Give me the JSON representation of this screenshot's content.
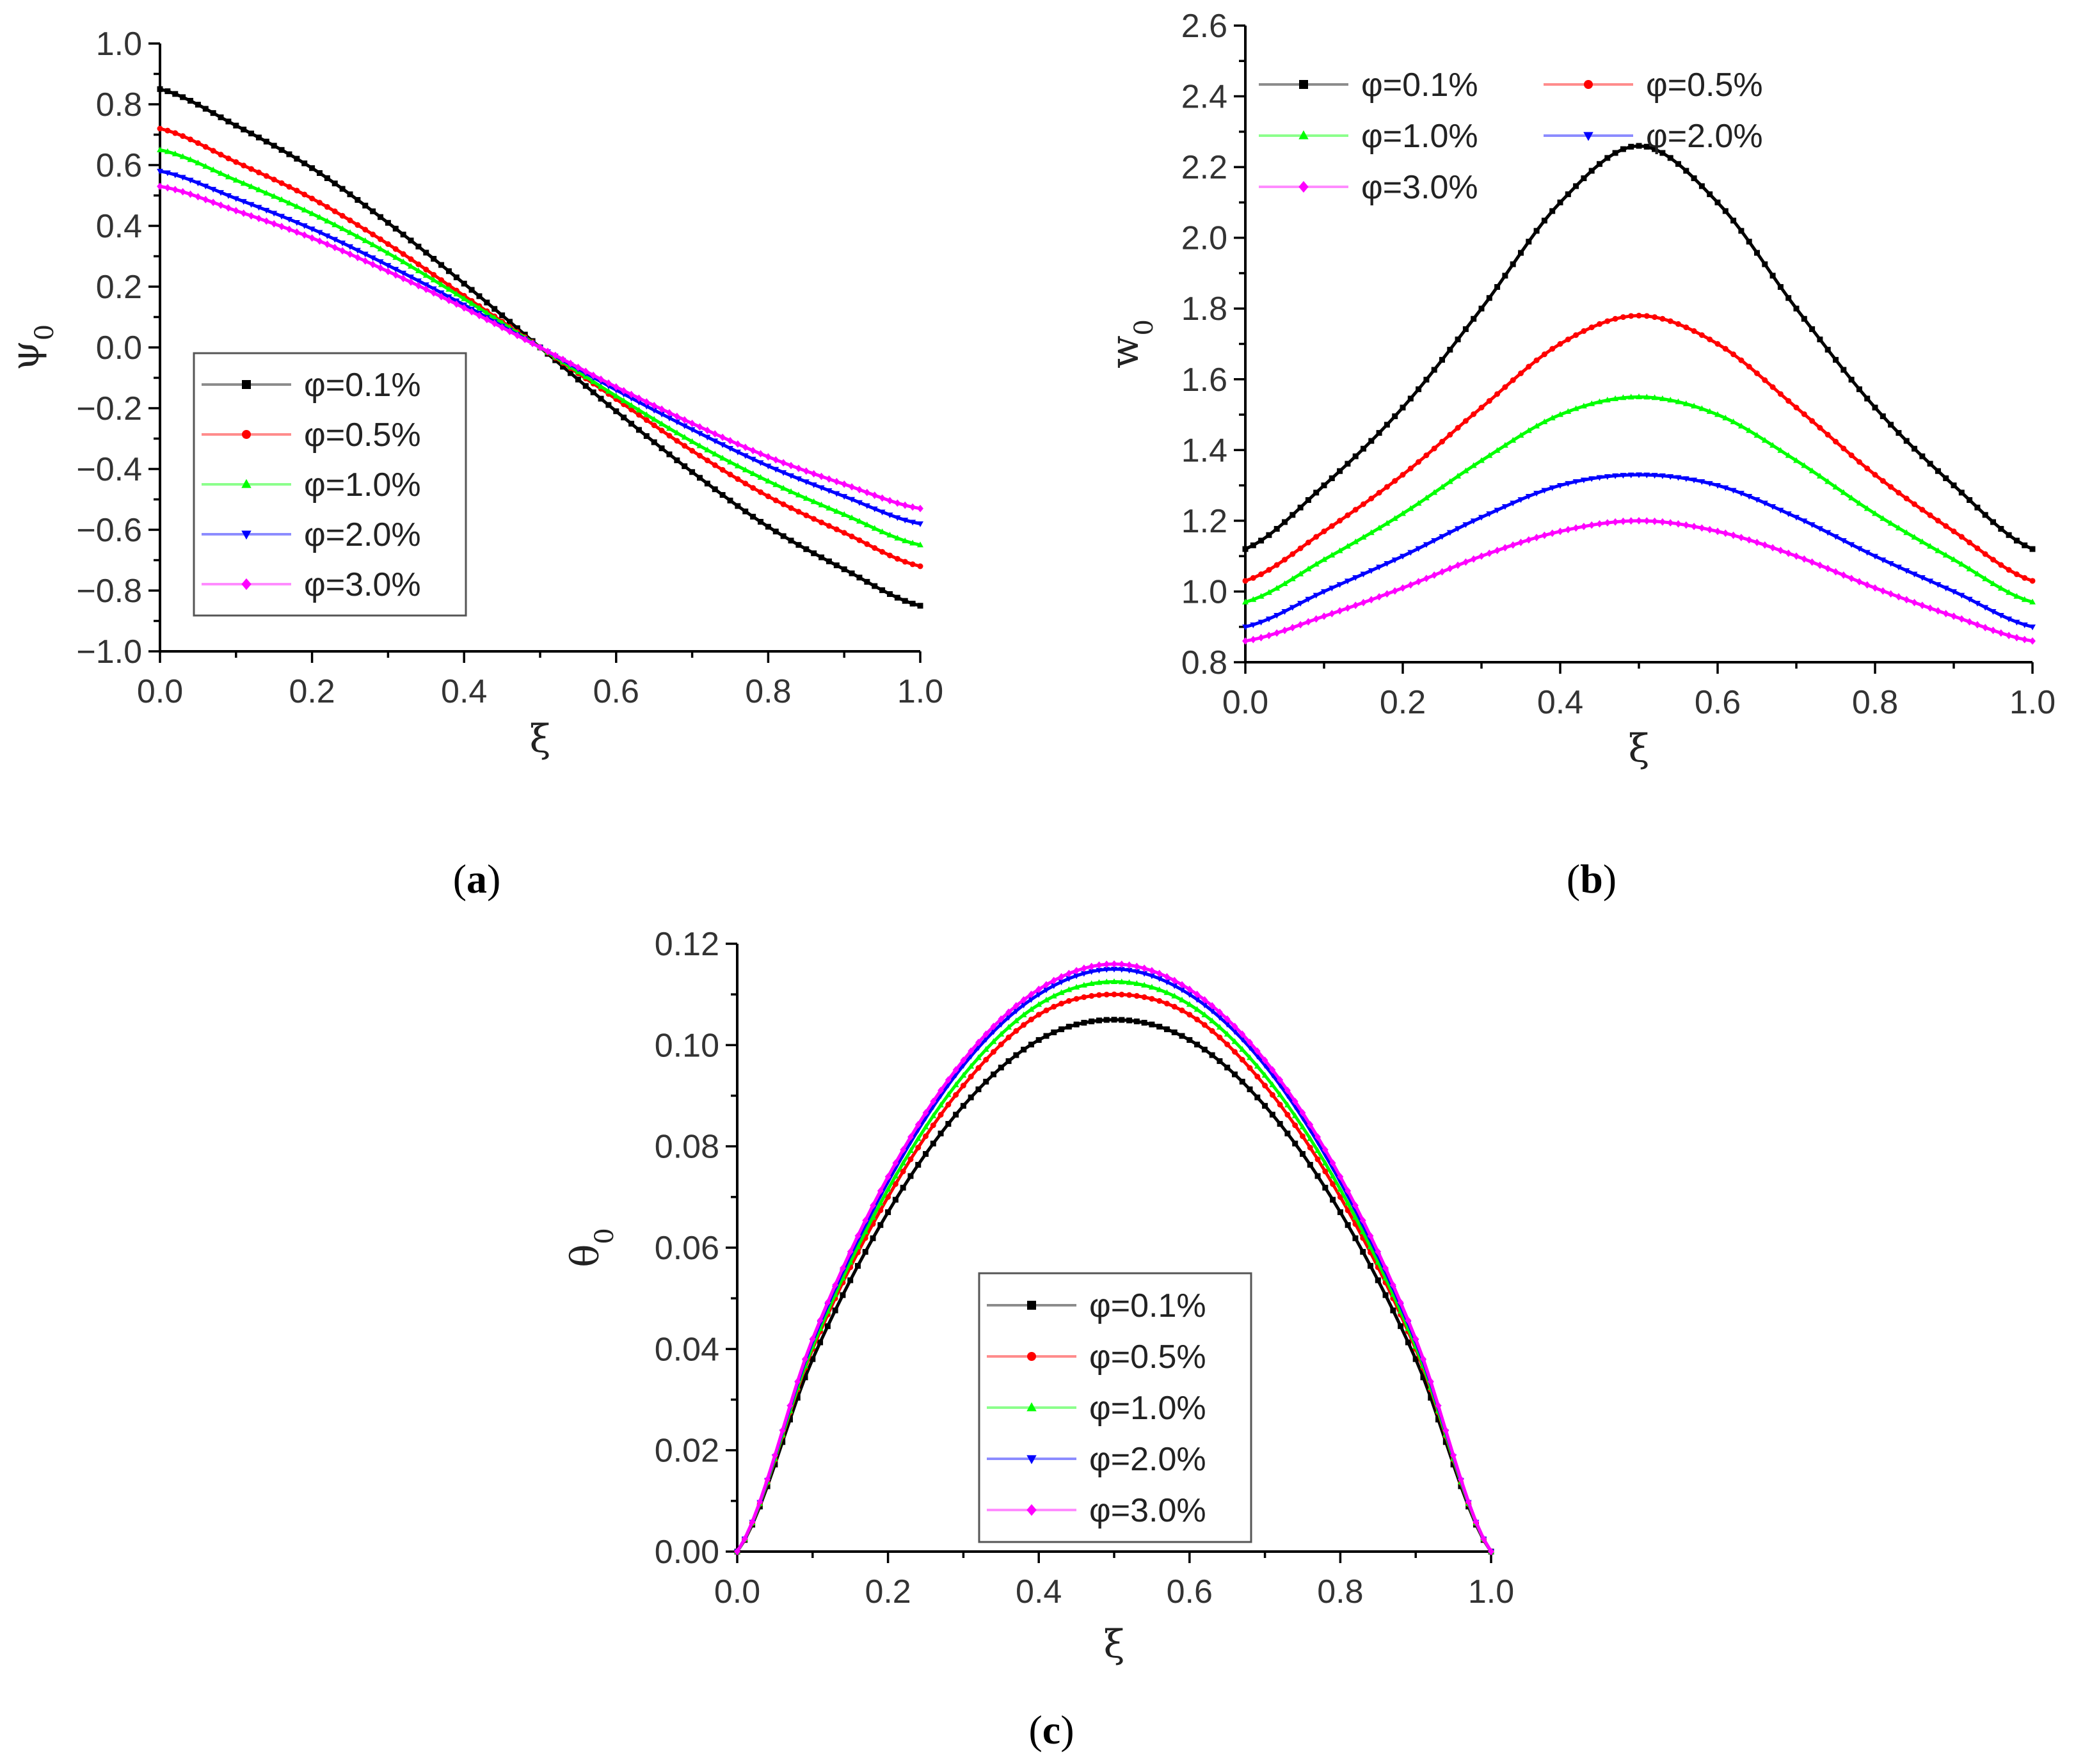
{
  "figure": {
    "panels": [
      {
        "id": "a",
        "open": "(",
        "letter": "a",
        "close": ")"
      },
      {
        "id": "b",
        "open": "(",
        "letter": "b",
        "close": ")"
      },
      {
        "id": "c",
        "open": "(",
        "letter": "c",
        "close": ")"
      }
    ]
  },
  "series_styles": [
    {
      "name": "φ=0.1%",
      "color": "#000000",
      "marker": "square"
    },
    {
      "name": "φ=0.5%",
      "color": "#ff0000",
      "marker": "circle"
    },
    {
      "name": "φ=1.0%",
      "color": "#00ff00",
      "marker": "triangle-up"
    },
    {
      "name": "φ=2.0%",
      "color": "#0000ff",
      "marker": "triangle-down"
    },
    {
      "name": "φ=3.0%",
      "color": "#ff00ff",
      "marker": "diamond"
    }
  ],
  "chart_data": [
    {
      "panel": "a",
      "type": "line",
      "title": "",
      "xlabel": "ξ",
      "ylabel": "ψ",
      "ylabel_sub": "0",
      "xlim": [
        0,
        1
      ],
      "ylim": [
        -1,
        1
      ],
      "x_ticks": [
        "0.0",
        "0.2",
        "0.4",
        "0.6",
        "0.8",
        "1.0"
      ],
      "y_ticks": [
        "-1.0",
        "-0.8",
        "-0.6",
        "-0.4",
        "-0.2",
        "0.0",
        "0.2",
        "0.4",
        "0.6",
        "0.8",
        "1.0"
      ],
      "legend": {
        "position": "lower-left",
        "columns": 1
      },
      "x": [
        0,
        0.1,
        0.2,
        0.3,
        0.4,
        0.5,
        0.6,
        0.7,
        0.8,
        0.9,
        1.0
      ],
      "series": [
        {
          "name": "φ=0.1%",
          "values": [
            0.85,
            0.73,
            0.59,
            0.41,
            0.21,
            0.0,
            -0.21,
            -0.41,
            -0.59,
            -0.73,
            -0.85
          ]
        },
        {
          "name": "φ=0.5%",
          "values": [
            0.72,
            0.61,
            0.49,
            0.34,
            0.17,
            0.0,
            -0.17,
            -0.34,
            -0.49,
            -0.61,
            -0.72
          ]
        },
        {
          "name": "φ=1.0%",
          "values": [
            0.65,
            0.55,
            0.44,
            0.31,
            0.16,
            0.0,
            -0.16,
            -0.31,
            -0.44,
            -0.55,
            -0.65
          ]
        },
        {
          "name": "φ=2.0%",
          "values": [
            0.58,
            0.49,
            0.39,
            0.27,
            0.14,
            0.0,
            -0.14,
            -0.27,
            -0.39,
            -0.49,
            -0.58
          ]
        },
        {
          "name": "φ=3.0%",
          "values": [
            0.53,
            0.45,
            0.36,
            0.25,
            0.13,
            0.0,
            -0.13,
            -0.25,
            -0.36,
            -0.45,
            -0.53
          ]
        }
      ]
    },
    {
      "panel": "b",
      "type": "line",
      "title": "",
      "xlabel": "ξ",
      "ylabel": "w",
      "ylabel_sub": "0",
      "xlim": [
        0,
        1
      ],
      "ylim": [
        0.8,
        2.6
      ],
      "x_ticks": [
        "0.0",
        "0.2",
        "0.4",
        "0.6",
        "0.8",
        "1.0"
      ],
      "y_ticks": [
        "0.8",
        "1.0",
        "1.2",
        "1.4",
        "1.6",
        "1.8",
        "2.0",
        "2.2",
        "2.4",
        "2.6"
      ],
      "legend": {
        "position": "top-left",
        "columns": 2
      },
      "x": [
        0,
        0.1,
        0.2,
        0.3,
        0.4,
        0.5,
        0.6,
        0.7,
        0.8,
        0.9,
        1.0
      ],
      "series": [
        {
          "name": "φ=0.1%",
          "values": [
            1.12,
            1.3,
            1.52,
            1.8,
            2.1,
            2.26,
            2.1,
            1.8,
            1.52,
            1.3,
            1.12
          ]
        },
        {
          "name": "φ=0.5%",
          "values": [
            1.03,
            1.17,
            1.33,
            1.52,
            1.7,
            1.78,
            1.7,
            1.52,
            1.33,
            1.17,
            1.03
          ]
        },
        {
          "name": "φ=1.0%",
          "values": [
            0.97,
            1.09,
            1.22,
            1.37,
            1.5,
            1.55,
            1.5,
            1.37,
            1.22,
            1.09,
            0.97
          ]
        },
        {
          "name": "φ=2.0%",
          "values": [
            0.9,
            1.0,
            1.1,
            1.21,
            1.3,
            1.33,
            1.3,
            1.21,
            1.1,
            1.0,
            0.9
          ]
        },
        {
          "name": "φ=3.0%",
          "values": [
            0.86,
            0.93,
            1.01,
            1.1,
            1.17,
            1.2,
            1.17,
            1.1,
            1.01,
            0.93,
            0.86
          ]
        }
      ]
    },
    {
      "panel": "c",
      "type": "line",
      "title": "",
      "xlabel": "ξ",
      "ylabel": "θ",
      "ylabel_sub": "0",
      "xlim": [
        0,
        1
      ],
      "ylim": [
        0,
        0.12
      ],
      "x_ticks": [
        "0.0",
        "0.2",
        "0.4",
        "0.6",
        "0.8",
        "1.0"
      ],
      "y_ticks": [
        "0.00",
        "0.02",
        "0.04",
        "0.06",
        "0.08",
        "0.10",
        "0.12"
      ],
      "legend": {
        "position": "lower-center",
        "columns": 1
      },
      "x": [
        0,
        0.1,
        0.2,
        0.3,
        0.4,
        0.5,
        0.6,
        0.7,
        0.8,
        0.9,
        1.0
      ],
      "series": [
        {
          "name": "φ=0.1%",
          "values": [
            0,
            0.038,
            0.067,
            0.088,
            0.101,
            0.105,
            0.101,
            0.088,
            0.067,
            0.038,
            0
          ]
        },
        {
          "name": "φ=0.5%",
          "values": [
            0,
            0.04,
            0.07,
            0.092,
            0.106,
            0.11,
            0.106,
            0.092,
            0.07,
            0.04,
            0
          ]
        },
        {
          "name": "φ=1.0%",
          "values": [
            0,
            0.0405,
            0.0715,
            0.094,
            0.108,
            0.1125,
            0.108,
            0.094,
            0.0715,
            0.0405,
            0
          ]
        },
        {
          "name": "φ=2.0%",
          "values": [
            0,
            0.0415,
            0.073,
            0.096,
            0.11,
            0.115,
            0.11,
            0.096,
            0.073,
            0.0415,
            0
          ]
        },
        {
          "name": "φ=3.0%",
          "values": [
            0,
            0.042,
            0.074,
            0.097,
            0.111,
            0.116,
            0.111,
            0.097,
            0.074,
            0.042,
            0
          ]
        }
      ]
    }
  ]
}
